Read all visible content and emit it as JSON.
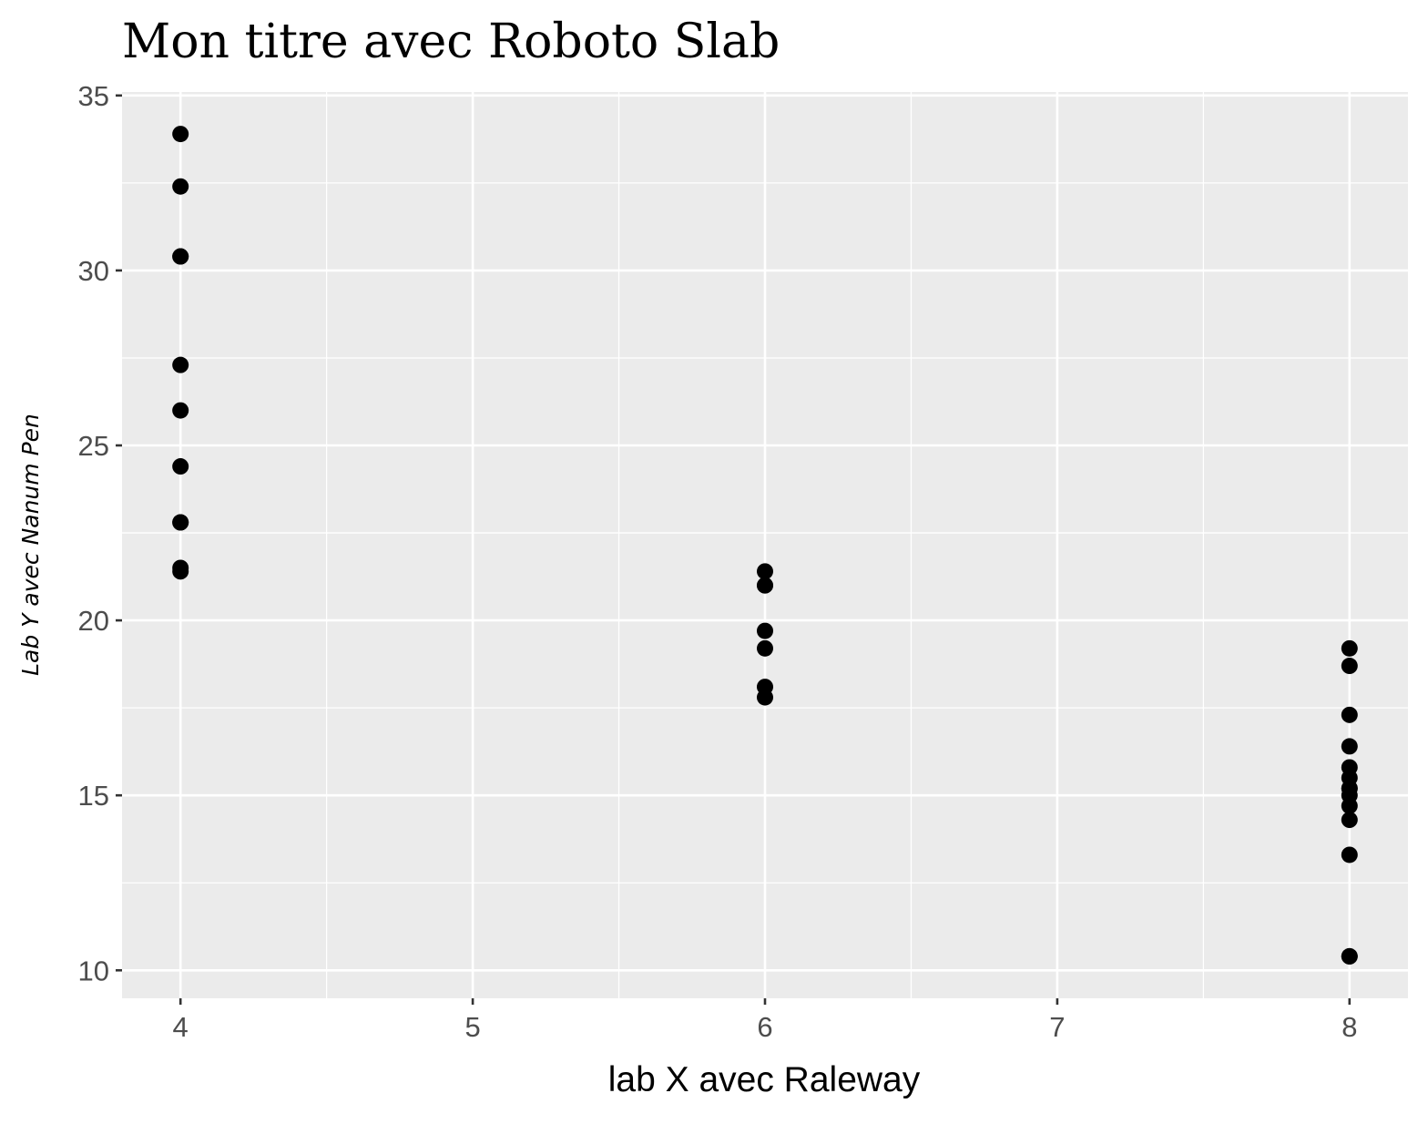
{
  "chart_data": {
    "type": "scatter",
    "title": "Mon titre avec Roboto Slab",
    "xlabel": "lab X avec Raleway",
    "ylabel": "Lab Y avec Nanum Pen",
    "xlim": [
      3.8,
      8.2
    ],
    "ylim": [
      9.2,
      35.1
    ],
    "x_ticks": [
      4,
      5,
      6,
      7,
      8
    ],
    "x_tick_labels": [
      "4",
      "5",
      "6",
      "7",
      "8"
    ],
    "y_ticks": [
      10,
      15,
      20,
      25,
      30,
      35
    ],
    "y_tick_labels": [
      "10",
      "15",
      "20",
      "25",
      "30",
      "35"
    ],
    "grid": true,
    "panel_background": "#ebebeb",
    "grid_color": "#ffffff",
    "point_color": "#000000",
    "points": [
      {
        "x": 4,
        "y": 33.9
      },
      {
        "x": 4,
        "y": 32.4
      },
      {
        "x": 4,
        "y": 30.4
      },
      {
        "x": 4,
        "y": 30.4
      },
      {
        "x": 4,
        "y": 27.3
      },
      {
        "x": 4,
        "y": 26.0
      },
      {
        "x": 4,
        "y": 24.4
      },
      {
        "x": 4,
        "y": 22.8
      },
      {
        "x": 4,
        "y": 22.8
      },
      {
        "x": 4,
        "y": 21.5
      },
      {
        "x": 4,
        "y": 21.4
      },
      {
        "x": 6,
        "y": 21.4
      },
      {
        "x": 6,
        "y": 21.0
      },
      {
        "x": 6,
        "y": 21.0
      },
      {
        "x": 6,
        "y": 19.7
      },
      {
        "x": 6,
        "y": 19.2
      },
      {
        "x": 6,
        "y": 18.1
      },
      {
        "x": 6,
        "y": 17.8
      },
      {
        "x": 8,
        "y": 19.2
      },
      {
        "x": 8,
        "y": 18.7
      },
      {
        "x": 8,
        "y": 17.3
      },
      {
        "x": 8,
        "y": 16.4
      },
      {
        "x": 8,
        "y": 15.8
      },
      {
        "x": 8,
        "y": 15.5
      },
      {
        "x": 8,
        "y": 15.2
      },
      {
        "x": 8,
        "y": 15.2
      },
      {
        "x": 8,
        "y": 15.0
      },
      {
        "x": 8,
        "y": 14.7
      },
      {
        "x": 8,
        "y": 14.3
      },
      {
        "x": 8,
        "y": 13.3
      },
      {
        "x": 8,
        "y": 10.4
      },
      {
        "x": 8,
        "y": 10.4
      }
    ]
  }
}
